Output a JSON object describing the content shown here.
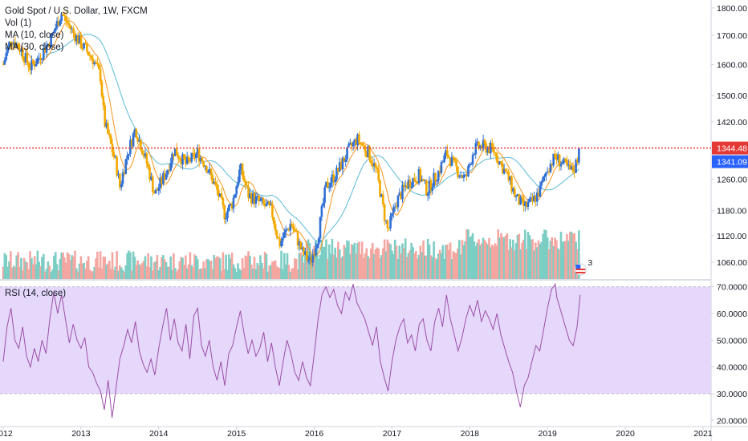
{
  "chart_data": [
    {
      "type": "candlestick",
      "title": "Gold Spot / U.S. Dollar, 1W, FXCM",
      "indicators": [
        "Vol (1)",
        "MA (10, close)",
        "MA (30, close)"
      ],
      "x_tick_labels": [
        "2012",
        "2013",
        "2014",
        "2015",
        "2016",
        "2017",
        "2018",
        "2019",
        "2020",
        "2021"
      ],
      "y_tick_labels": [
        "1060.00",
        "1120.00",
        "1180.00",
        "1260.00",
        "1340.00",
        "1420.00",
        "1500.00",
        "1600.00",
        "1700.00",
        "1800.00"
      ],
      "ylim": [
        1020,
        1830
      ],
      "y_scale": "log",
      "price_path": [
        [
          2012.0,
          1600
        ],
        [
          2012.1,
          1690
        ],
        [
          2012.2,
          1660
        ],
        [
          2012.35,
          1590
        ],
        [
          2012.45,
          1620
        ],
        [
          2012.6,
          1680
        ],
        [
          2012.75,
          1780
        ],
        [
          2012.9,
          1710
        ],
        [
          2013.0,
          1670
        ],
        [
          2013.15,
          1620
        ],
        [
          2013.25,
          1560
        ],
        [
          2013.3,
          1420
        ],
        [
          2013.45,
          1300
        ],
        [
          2013.5,
          1240
        ],
        [
          2013.6,
          1330
        ],
        [
          2013.7,
          1400
        ],
        [
          2013.85,
          1300
        ],
        [
          2013.95,
          1220
        ],
        [
          2014.1,
          1280
        ],
        [
          2014.2,
          1340
        ],
        [
          2014.35,
          1300
        ],
        [
          2014.5,
          1330
        ],
        [
          2014.6,
          1300
        ],
        [
          2014.75,
          1230
        ],
        [
          2014.85,
          1170
        ],
        [
          2014.95,
          1200
        ],
        [
          2015.05,
          1290
        ],
        [
          2015.15,
          1220
        ],
        [
          2015.3,
          1200
        ],
        [
          2015.45,
          1180
        ],
        [
          2015.55,
          1100
        ],
        [
          2015.7,
          1150
        ],
        [
          2015.85,
          1080
        ],
        [
          2015.95,
          1060
        ],
        [
          2016.05,
          1120
        ],
        [
          2016.15,
          1240
        ],
        [
          2016.3,
          1280
        ],
        [
          2016.45,
          1340
        ],
        [
          2016.55,
          1370
        ],
        [
          2016.7,
          1330
        ],
        [
          2016.8,
          1280
        ],
        [
          2016.9,
          1170
        ],
        [
          2016.95,
          1130
        ],
        [
          2017.05,
          1200
        ],
        [
          2017.2,
          1250
        ],
        [
          2017.35,
          1270
        ],
        [
          2017.45,
          1230
        ],
        [
          2017.6,
          1280
        ],
        [
          2017.7,
          1330
        ],
        [
          2017.85,
          1280
        ],
        [
          2017.95,
          1260
        ],
        [
          2018.05,
          1340
        ],
        [
          2018.15,
          1350
        ],
        [
          2018.3,
          1340
        ],
        [
          2018.4,
          1300
        ],
        [
          2018.5,
          1260
        ],
        [
          2018.6,
          1210
        ],
        [
          2018.7,
          1190
        ],
        [
          2018.8,
          1200
        ],
        [
          2018.9,
          1230
        ],
        [
          2019.0,
          1290
        ],
        [
          2019.1,
          1320
        ],
        [
          2019.2,
          1300
        ],
        [
          2019.3,
          1280
        ],
        [
          2019.35,
          1290
        ],
        [
          2019.42,
          1344
        ]
      ],
      "rsi": {
        "label": "RSI (14, close)",
        "y_tick_labels": [
          "20.0000",
          "30.0000",
          "40.0000",
          "50.0000",
          "60.0000",
          "70.0000"
        ],
        "ylim": [
          18,
          72
        ],
        "band": [
          30,
          70
        ],
        "values": [
          [
            2012.0,
            42
          ],
          [
            2012.05,
            55
          ],
          [
            2012.1,
            62
          ],
          [
            2012.15,
            50
          ],
          [
            2012.2,
            47
          ],
          [
            2012.25,
            55
          ],
          [
            2012.3,
            44
          ],
          [
            2012.35,
            40
          ],
          [
            2012.4,
            47
          ],
          [
            2012.45,
            42
          ],
          [
            2012.5,
            50
          ],
          [
            2012.55,
            45
          ],
          [
            2012.6,
            58
          ],
          [
            2012.65,
            68
          ],
          [
            2012.7,
            60
          ],
          [
            2012.75,
            67
          ],
          [
            2012.8,
            58
          ],
          [
            2012.85,
            49
          ],
          [
            2012.9,
            56
          ],
          [
            2012.95,
            50
          ],
          [
            2013.0,
            47
          ],
          [
            2013.05,
            51
          ],
          [
            2013.1,
            40
          ],
          [
            2013.15,
            38
          ],
          [
            2013.2,
            34
          ],
          [
            2013.25,
            31
          ],
          [
            2013.3,
            24
          ],
          [
            2013.35,
            35
          ],
          [
            2013.4,
            21
          ],
          [
            2013.45,
            32
          ],
          [
            2013.5,
            43
          ],
          [
            2013.55,
            48
          ],
          [
            2013.6,
            54
          ],
          [
            2013.65,
            49
          ],
          [
            2013.7,
            57
          ],
          [
            2013.75,
            46
          ],
          [
            2013.8,
            41
          ],
          [
            2013.85,
            38
          ],
          [
            2013.9,
            43
          ],
          [
            2013.95,
            37
          ],
          [
            2014.0,
            47
          ],
          [
            2014.05,
            55
          ],
          [
            2014.1,
            62
          ],
          [
            2014.15,
            50
          ],
          [
            2014.2,
            58
          ],
          [
            2014.25,
            49
          ],
          [
            2014.3,
            46
          ],
          [
            2014.35,
            56
          ],
          [
            2014.4,
            43
          ],
          [
            2014.45,
            59
          ],
          [
            2014.5,
            62
          ],
          [
            2014.55,
            48
          ],
          [
            2014.6,
            44
          ],
          [
            2014.65,
            50
          ],
          [
            2014.7,
            40
          ],
          [
            2014.75,
            35
          ],
          [
            2014.8,
            42
          ],
          [
            2014.85,
            33
          ],
          [
            2014.9,
            45
          ],
          [
            2014.95,
            48
          ],
          [
            2015.0,
            55
          ],
          [
            2015.05,
            61
          ],
          [
            2015.1,
            52
          ],
          [
            2015.15,
            45
          ],
          [
            2015.2,
            50
          ],
          [
            2015.25,
            44
          ],
          [
            2015.3,
            47
          ],
          [
            2015.35,
            53
          ],
          [
            2015.4,
            42
          ],
          [
            2015.45,
            49
          ],
          [
            2015.5,
            40
          ],
          [
            2015.55,
            33
          ],
          [
            2015.6,
            42
          ],
          [
            2015.65,
            50
          ],
          [
            2015.7,
            45
          ],
          [
            2015.75,
            38
          ],
          [
            2015.8,
            35
          ],
          [
            2015.85,
            42
          ],
          [
            2015.9,
            36
          ],
          [
            2015.95,
            33
          ],
          [
            2016.0,
            45
          ],
          [
            2016.05,
            58
          ],
          [
            2016.1,
            67
          ],
          [
            2016.15,
            70
          ],
          [
            2016.2,
            66
          ],
          [
            2016.25,
            69
          ],
          [
            2016.3,
            63
          ],
          [
            2016.35,
            60
          ],
          [
            2016.4,
            68
          ],
          [
            2016.45,
            65
          ],
          [
            2016.5,
            71
          ],
          [
            2016.55,
            64
          ],
          [
            2016.6,
            61
          ],
          [
            2016.65,
            58
          ],
          [
            2016.7,
            53
          ],
          [
            2016.75,
            48
          ],
          [
            2016.8,
            55
          ],
          [
            2016.85,
            42
          ],
          [
            2016.9,
            36
          ],
          [
            2016.95,
            31
          ],
          [
            2017.0,
            42
          ],
          [
            2017.05,
            50
          ],
          [
            2017.1,
            55
          ],
          [
            2017.15,
            58
          ],
          [
            2017.2,
            49
          ],
          [
            2017.25,
            52
          ],
          [
            2017.3,
            46
          ],
          [
            2017.35,
            56
          ],
          [
            2017.4,
            58
          ],
          [
            2017.45,
            50
          ],
          [
            2017.5,
            46
          ],
          [
            2017.55,
            57
          ],
          [
            2017.6,
            62
          ],
          [
            2017.65,
            55
          ],
          [
            2017.7,
            67
          ],
          [
            2017.75,
            58
          ],
          [
            2017.8,
            52
          ],
          [
            2017.85,
            46
          ],
          [
            2017.9,
            51
          ],
          [
            2017.95,
            58
          ],
          [
            2018.0,
            63
          ],
          [
            2018.05,
            59
          ],
          [
            2018.1,
            65
          ],
          [
            2018.15,
            57
          ],
          [
            2018.2,
            61
          ],
          [
            2018.25,
            58
          ],
          [
            2018.3,
            54
          ],
          [
            2018.35,
            60
          ],
          [
            2018.4,
            52
          ],
          [
            2018.45,
            47
          ],
          [
            2018.5,
            42
          ],
          [
            2018.55,
            38
          ],
          [
            2018.6,
            31
          ],
          [
            2018.65,
            25
          ],
          [
            2018.7,
            33
          ],
          [
            2018.75,
            36
          ],
          [
            2018.8,
            42
          ],
          [
            2018.85,
            48
          ],
          [
            2018.9,
            46
          ],
          [
            2018.95,
            54
          ],
          [
            2019.0,
            62
          ],
          [
            2019.05,
            69
          ],
          [
            2019.1,
            71
          ],
          [
            2019.12,
            66
          ],
          [
            2019.18,
            60
          ],
          [
            2019.22,
            56
          ],
          [
            2019.28,
            50
          ],
          [
            2019.33,
            48
          ],
          [
            2019.38,
            55
          ],
          [
            2019.42,
            67
          ]
        ]
      }
    }
  ],
  "price_tags": {
    "horizontal_line_value": 1344.48,
    "horizontal_line_label": "1344.48",
    "last_price_label": "1341.09",
    "line_color": "#e53935",
    "last_price_color": "#2962ff"
  },
  "colors": {
    "up": "#2f6fd6",
    "down": "#f2a900",
    "ma10": "#f7931a",
    "ma30": "#5ab9d8",
    "rsi_line": "#9c4fa8",
    "rsi_band": "#e5d8fa",
    "vol_up": "#7ccdc4",
    "vol_down": "#f4a6a1"
  },
  "event_badge": {
    "text": "3"
  }
}
